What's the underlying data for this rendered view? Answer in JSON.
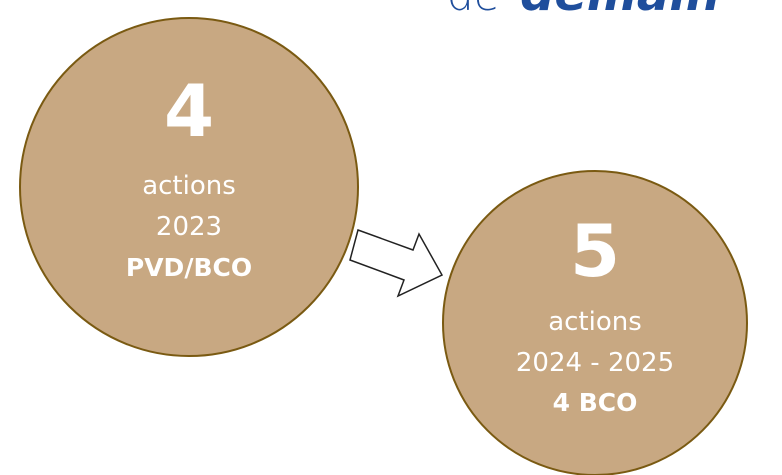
{
  "header": {
    "prefix": "de",
    "brand": "demain"
  },
  "nodes": [
    {
      "number": "4",
      "label": "actions",
      "period": "2023",
      "scope": "PVD/BCO"
    },
    {
      "number": "5",
      "label": "actions",
      "period": "2024 - 2025",
      "scope": "4 BCO"
    }
  ]
}
